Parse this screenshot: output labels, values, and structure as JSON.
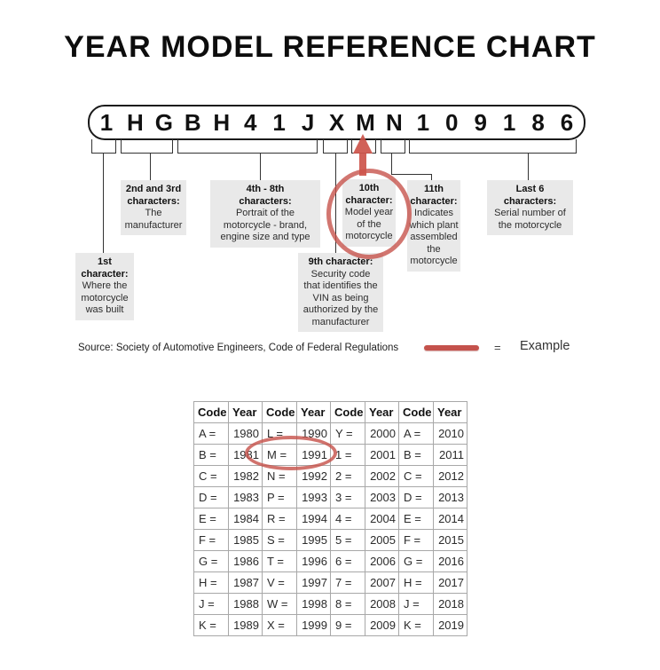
{
  "title": "YEAR MODEL REFERENCE CHART",
  "vin": {
    "characters": [
      "1",
      "H",
      "G",
      "B",
      "H",
      "4",
      "1",
      "J",
      "X",
      "M",
      "N",
      "1",
      "0",
      "9",
      "1",
      "8",
      "6"
    ]
  },
  "callouts": {
    "first": {
      "header": "1st\ncharacter:",
      "body": "Where the\nmotorcycle\nwas built"
    },
    "second": {
      "header": "2nd and 3rd\ncharacters:",
      "body": "The\nmanufacturer"
    },
    "fourth": {
      "header": "4th - 8th\ncharacters:",
      "body": "Portrait of the\nmotorcycle - brand,\nengine size and type"
    },
    "ninth": {
      "header": "9th character:",
      "body": "Security code\nthat identifies the\nVIN as being\nauthorized by the\nmanufacturer"
    },
    "tenth": {
      "header": "10th\ncharacter:",
      "body": "Model year\nof the\nmotorcycle"
    },
    "eleventh": {
      "header": "11th\ncharacter:",
      "body": "Indicates\nwhich plant\nassembled\nthe\nmotorcycle"
    },
    "last6": {
      "header": "Last 6\ncharacters:",
      "body": "Serial number of\nthe motorcycle"
    }
  },
  "source_line": "Source:  Society of Automotive Engineers, Code of Federal Regulations",
  "legend": {
    "equals": "=",
    "example_label": "Example"
  },
  "colors": {
    "accent_red": "#c4524c",
    "callout_gray": "#e9e9e9",
    "grid_gray": "#a8a8a8"
  },
  "table": {
    "headers": [
      "Code",
      "Year",
      "Code",
      "Year",
      "Code",
      "Year",
      "Code",
      "Year"
    ],
    "rows": [
      [
        "A =",
        "1980",
        "L =",
        "1990",
        "Y =",
        "2000",
        "A =",
        "2010"
      ],
      [
        "B =",
        "1981",
        "M =",
        "1991",
        "1 =",
        "2001",
        "B =",
        "2011"
      ],
      [
        "C =",
        "1982",
        "N =",
        "1992",
        "2 =",
        "2002",
        "C =",
        "2012"
      ],
      [
        "D =",
        "1983",
        "P =",
        "1993",
        "3 =",
        "2003",
        "D =",
        "2013"
      ],
      [
        "E =",
        "1984",
        "R =",
        "1994",
        "4 =",
        "2004",
        "E =",
        "2014"
      ],
      [
        "F =",
        "1985",
        "S =",
        "1995",
        "5 =",
        "2005",
        "F =",
        "2015"
      ],
      [
        "G =",
        "1986",
        "T =",
        "1996",
        "6 =",
        "2006",
        "G =",
        "2016"
      ],
      [
        "H =",
        "1987",
        "V =",
        "1997",
        "7 =",
        "2007",
        "H =",
        "2017"
      ],
      [
        "J =",
        "1988",
        "W =",
        "1998",
        "8 =",
        "2008",
        "J =",
        "2018"
      ],
      [
        "K =",
        "1989",
        "X =",
        "1999",
        "9 =",
        "2009",
        "K =",
        "2019"
      ]
    ]
  }
}
